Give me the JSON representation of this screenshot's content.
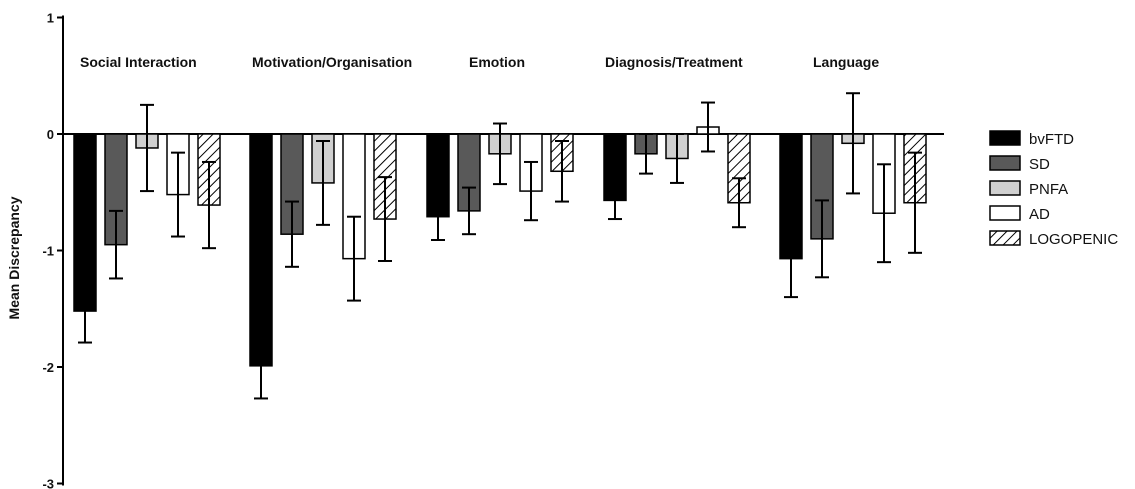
{
  "chart_data": {
    "type": "bar",
    "title": "",
    "xlabel": "",
    "ylabel": "Mean Discrepancy",
    "ylim": [
      -3,
      1
    ],
    "yticks": [
      "1",
      "0",
      "-1",
      "-2",
      "-3"
    ],
    "grid": false,
    "legend_position": "right",
    "categories": [
      "Social Interaction",
      "Motivation/Organisation",
      "Emotion",
      "Diagnosis/Treatment",
      "Language"
    ],
    "series": [
      {
        "name": "bvFTD",
        "fill": "solid",
        "color": "#000000",
        "values": [
          -1.52,
          -1.99,
          -0.71,
          -0.57,
          -1.07
        ],
        "errors": [
          0.27,
          0.28,
          0.2,
          0.16,
          0.33
        ]
      },
      {
        "name": "SD",
        "fill": "solid",
        "color": "#595959",
        "values": [
          -0.95,
          -0.86,
          -0.66,
          -0.17,
          -0.9
        ],
        "errors": [
          0.29,
          0.28,
          0.2,
          0.17,
          0.33
        ]
      },
      {
        "name": "PNFA",
        "fill": "solid",
        "color": "#d0d0d0",
        "values": [
          -0.12,
          -0.42,
          -0.17,
          -0.21,
          -0.08
        ],
        "errors": [
          0.37,
          0.36,
          0.26,
          0.21,
          0.43
        ]
      },
      {
        "name": "AD",
        "fill": "solid",
        "color": "#ffffff",
        "values": [
          -0.52,
          -1.07,
          -0.49,
          0.06,
          -0.68
        ],
        "errors": [
          0.36,
          0.36,
          0.25,
          0.21,
          0.42
        ]
      },
      {
        "name": "LOGOPENIC",
        "fill": "hatched",
        "color": "#ffffff",
        "values": [
          -0.61,
          -0.73,
          -0.32,
          -0.59,
          -0.59
        ],
        "errors": [
          0.37,
          0.36,
          0.26,
          0.21,
          0.43
        ]
      }
    ]
  }
}
